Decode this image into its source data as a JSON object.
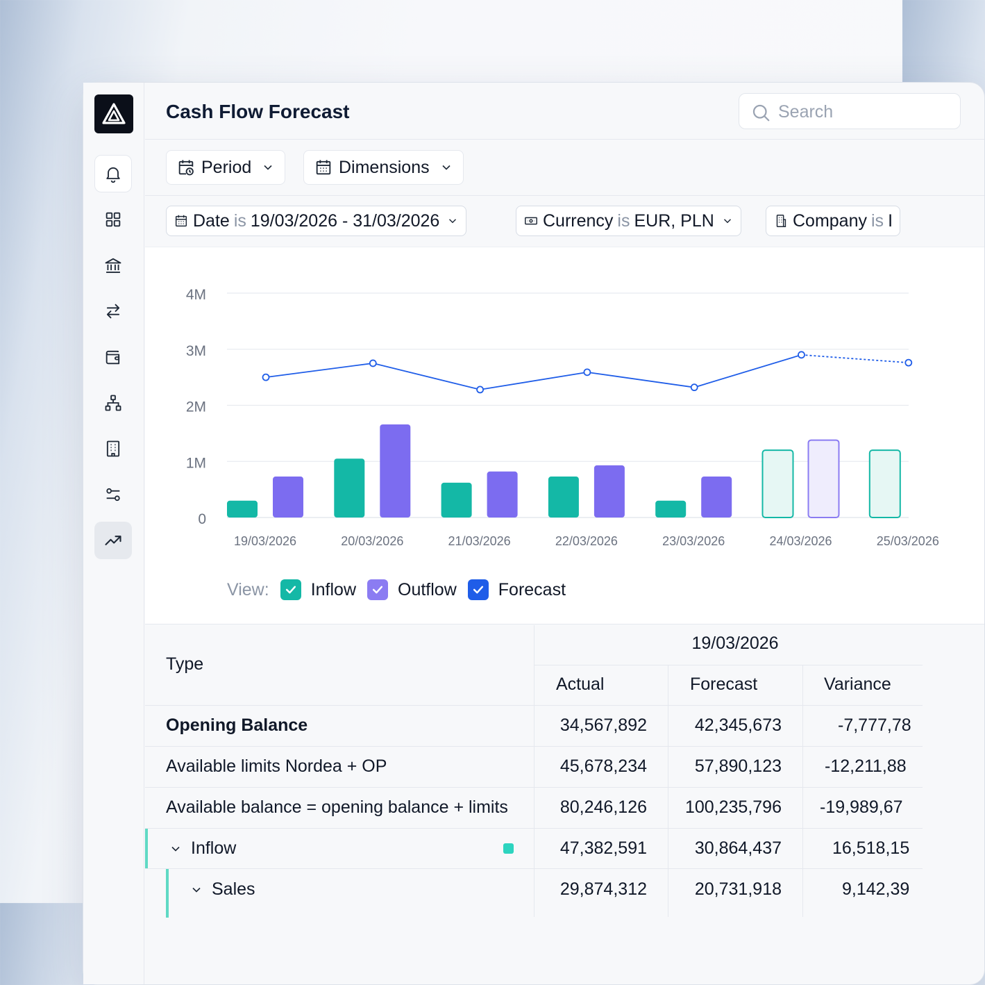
{
  "app": {
    "title": "Cash Flow Forecast"
  },
  "search": {
    "placeholder": "Search"
  },
  "toolbar": {
    "period_label": "Period",
    "dimensions_label": "Dimensions"
  },
  "filters": [
    {
      "field": "Date",
      "op": "is",
      "value": "19/03/2026 - 31/03/2026"
    },
    {
      "field": "Currency",
      "op": "is",
      "value": "EUR, PLN"
    },
    {
      "field": "Company",
      "op": "is",
      "value": "I"
    }
  ],
  "sidebar": {
    "items": [
      "bell-icon",
      "dashboard-icon",
      "bank-icon",
      "transfer-icon",
      "wallet-icon",
      "hierarchy-icon",
      "building-icon",
      "settings-sliders-icon",
      "trend-icon"
    ],
    "active": "trend-icon"
  },
  "colors": {
    "inflow": "#14b8a6",
    "outflow": "#7c6cf0",
    "forecast": "#1f5de8"
  },
  "chart_data": {
    "type": "bar",
    "categories": [
      "19/03/2026",
      "20/03/2026",
      "21/03/2026",
      "22/03/2026",
      "23/03/2026",
      "24/03/2026",
      "25/03/2026"
    ],
    "y_ticks": [
      "0",
      "1M",
      "2M",
      "3M",
      "4M"
    ],
    "ylim": [
      0,
      4000000
    ],
    "forecast_from_index": 5,
    "series": [
      {
        "name": "Inflow",
        "type": "bar",
        "values": [
          300000,
          1050000,
          620000,
          730000,
          300000,
          1200000,
          1200000
        ]
      },
      {
        "name": "Outflow",
        "type": "bar",
        "values": [
          730000,
          1660000,
          820000,
          930000,
          730000,
          1380000,
          null
        ]
      },
      {
        "name": "Forecast",
        "type": "line",
        "values": [
          2500000,
          2750000,
          2280000,
          2590000,
          2320000,
          2900000,
          2760000
        ]
      }
    ],
    "legend": {
      "label": "View:",
      "items": [
        "Inflow",
        "Outflow",
        "Forecast"
      ],
      "placement": "bottom-left"
    }
  },
  "table": {
    "type_header": "Type",
    "date_header": "19/03/2026",
    "col_headers": [
      "Actual",
      "Forecast",
      "Variance"
    ],
    "rows": [
      {
        "label": "Opening Balance",
        "actual": "34,567,892",
        "forecast": "42,345,673",
        "variance": "-7,777,78"
      },
      {
        "label": "Available limits Nordea + OP",
        "actual": "45,678,234",
        "forecast": "57,890,123",
        "variance": "-12,211,88"
      },
      {
        "label": "Available balance = opening balance + limits",
        "actual": "80,246,126",
        "forecast": "100,235,796",
        "variance": "-19,989,67"
      },
      {
        "label": "Inflow",
        "actual": "47,382,591",
        "forecast": "30,864,437",
        "variance": "16,518,15"
      },
      {
        "label": "Sales",
        "actual": "29,874,312",
        "forecast": "20,731,918",
        "variance": "9,142,39"
      }
    ]
  }
}
